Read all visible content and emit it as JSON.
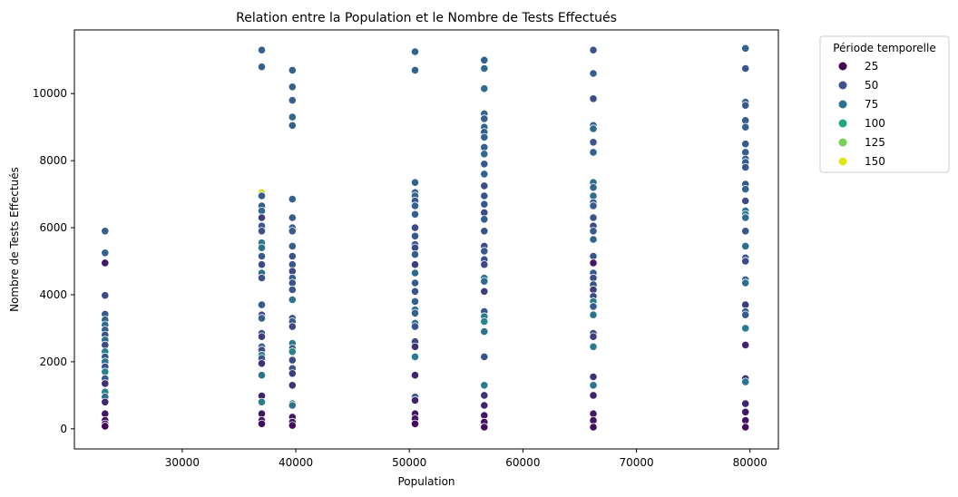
{
  "chart_data": {
    "type": "scatter",
    "title": "Relation entre la Population et le Nombre de Tests Effectués",
    "xlabel": "Population",
    "ylabel": "Nombre de Tests Effectués",
    "xlim": [
      20500,
      82500
    ],
    "ylim": [
      -600,
      11900
    ],
    "xticks": [
      30000,
      40000,
      50000,
      60000,
      70000,
      80000
    ],
    "yticks": [
      0,
      2000,
      4000,
      6000,
      8000,
      10000
    ],
    "grid": false,
    "legend": {
      "title": "Période temporelle",
      "placement": "outside-top-right",
      "entries": [
        {
          "label": "25",
          "color": "#440154"
        },
        {
          "label": "50",
          "color": "#3b528b"
        },
        {
          "label": "75",
          "color": "#2c728e"
        },
        {
          "label": "100",
          "color": "#21a685"
        },
        {
          "label": "125",
          "color": "#75d054"
        },
        {
          "label": "150",
          "color": "#e3e418"
        }
      ]
    },
    "hue_range": [
      1,
      160
    ],
    "points": [
      {
        "x": 23200,
        "y": 5900,
        "t": 45
      },
      {
        "x": 23200,
        "y": 5250,
        "t": 50
      },
      {
        "x": 23200,
        "y": 4950,
        "t": 10
      },
      {
        "x": 23200,
        "y": 3980,
        "t": 30
      },
      {
        "x": 23200,
        "y": 3420,
        "t": 40
      },
      {
        "x": 23200,
        "y": 3250,
        "t": 50
      },
      {
        "x": 23200,
        "y": 3100,
        "t": 60
      },
      {
        "x": 23200,
        "y": 2950,
        "t": 45
      },
      {
        "x": 23200,
        "y": 2800,
        "t": 35
      },
      {
        "x": 23200,
        "y": 2650,
        "t": 55
      },
      {
        "x": 23200,
        "y": 2500,
        "t": 30
      },
      {
        "x": 23200,
        "y": 2300,
        "t": 70
      },
      {
        "x": 23200,
        "y": 2150,
        "t": 40
      },
      {
        "x": 23200,
        "y": 2000,
        "t": 65
      },
      {
        "x": 23200,
        "y": 1850,
        "t": 35
      },
      {
        "x": 23200,
        "y": 1700,
        "t": 75
      },
      {
        "x": 23200,
        "y": 1500,
        "t": 40
      },
      {
        "x": 23200,
        "y": 1350,
        "t": 20
      },
      {
        "x": 23200,
        "y": 1100,
        "t": 75
      },
      {
        "x": 23200,
        "y": 950,
        "t": 55
      },
      {
        "x": 23200,
        "y": 800,
        "t": 15
      },
      {
        "x": 23200,
        "y": 450,
        "t": 10
      },
      {
        "x": 23200,
        "y": 250,
        "t": 5
      },
      {
        "x": 23200,
        "y": 150,
        "t": 8
      },
      {
        "x": 23200,
        "y": 80,
        "t": 3
      },
      {
        "x": 37000,
        "y": 11300,
        "t": 50
      },
      {
        "x": 37000,
        "y": 10800,
        "t": 50
      },
      {
        "x": 37000,
        "y": 7050,
        "t": 155
      },
      {
        "x": 37000,
        "y": 6950,
        "t": 40
      },
      {
        "x": 37000,
        "y": 6650,
        "t": 45
      },
      {
        "x": 37000,
        "y": 6500,
        "t": 60
      },
      {
        "x": 37000,
        "y": 6300,
        "t": 25
      },
      {
        "x": 37000,
        "y": 6050,
        "t": 40
      },
      {
        "x": 37000,
        "y": 5900,
        "t": 35
      },
      {
        "x": 37000,
        "y": 5550,
        "t": 70
      },
      {
        "x": 37000,
        "y": 5400,
        "t": 65
      },
      {
        "x": 37000,
        "y": 5150,
        "t": 40
      },
      {
        "x": 37000,
        "y": 4900,
        "t": 30
      },
      {
        "x": 37000,
        "y": 4650,
        "t": 65
      },
      {
        "x": 37000,
        "y": 4500,
        "t": 35
      },
      {
        "x": 37000,
        "y": 3700,
        "t": 40
      },
      {
        "x": 37000,
        "y": 3400,
        "t": 30
      },
      {
        "x": 37000,
        "y": 3300,
        "t": 45
      },
      {
        "x": 37000,
        "y": 2850,
        "t": 35
      },
      {
        "x": 37000,
        "y": 2750,
        "t": 25
      },
      {
        "x": 37000,
        "y": 2450,
        "t": 40
      },
      {
        "x": 37000,
        "y": 2350,
        "t": 30
      },
      {
        "x": 37000,
        "y": 2200,
        "t": 70
      },
      {
        "x": 37000,
        "y": 2100,
        "t": 35
      },
      {
        "x": 37000,
        "y": 1950,
        "t": 20
      },
      {
        "x": 37000,
        "y": 1600,
        "t": 65
      },
      {
        "x": 37000,
        "y": 980,
        "t": 15
      },
      {
        "x": 37000,
        "y": 800,
        "t": 70
      },
      {
        "x": 37000,
        "y": 450,
        "t": 10
      },
      {
        "x": 37000,
        "y": 250,
        "t": 8
      },
      {
        "x": 37000,
        "y": 150,
        "t": 5
      },
      {
        "x": 39700,
        "y": 10700,
        "t": 50
      },
      {
        "x": 39700,
        "y": 10200,
        "t": 50
      },
      {
        "x": 39700,
        "y": 9800,
        "t": 50
      },
      {
        "x": 39700,
        "y": 9300,
        "t": 55
      },
      {
        "x": 39700,
        "y": 9050,
        "t": 50
      },
      {
        "x": 39700,
        "y": 6850,
        "t": 50
      },
      {
        "x": 39700,
        "y": 6300,
        "t": 45
      },
      {
        "x": 39700,
        "y": 6000,
        "t": 50
      },
      {
        "x": 39700,
        "y": 5900,
        "t": 40
      },
      {
        "x": 39700,
        "y": 5450,
        "t": 45
      },
      {
        "x": 39700,
        "y": 5150,
        "t": 35
      },
      {
        "x": 39700,
        "y": 4900,
        "t": 40
      },
      {
        "x": 39700,
        "y": 4700,
        "t": 30
      },
      {
        "x": 39700,
        "y": 4500,
        "t": 45
      },
      {
        "x": 39700,
        "y": 4350,
        "t": 35
      },
      {
        "x": 39700,
        "y": 4150,
        "t": 40
      },
      {
        "x": 39700,
        "y": 3850,
        "t": 65
      },
      {
        "x": 39700,
        "y": 3300,
        "t": 35
      },
      {
        "x": 39700,
        "y": 3200,
        "t": 45
      },
      {
        "x": 39700,
        "y": 3050,
        "t": 30
      },
      {
        "x": 39700,
        "y": 2550,
        "t": 70
      },
      {
        "x": 39700,
        "y": 2400,
        "t": 40
      },
      {
        "x": 39700,
        "y": 2300,
        "t": 75
      },
      {
        "x": 39700,
        "y": 2050,
        "t": 30
      },
      {
        "x": 39700,
        "y": 1800,
        "t": 35
      },
      {
        "x": 39700,
        "y": 1650,
        "t": 25
      },
      {
        "x": 39700,
        "y": 1300,
        "t": 20
      },
      {
        "x": 39700,
        "y": 750,
        "t": 70
      },
      {
        "x": 39700,
        "y": 700,
        "t": 65
      },
      {
        "x": 39700,
        "y": 350,
        "t": 10
      },
      {
        "x": 39700,
        "y": 200,
        "t": 8
      },
      {
        "x": 39700,
        "y": 100,
        "t": 5
      },
      {
        "x": 50500,
        "y": 11250,
        "t": 50
      },
      {
        "x": 50500,
        "y": 10700,
        "t": 50
      },
      {
        "x": 50500,
        "y": 7350,
        "t": 50
      },
      {
        "x": 50500,
        "y": 7050,
        "t": 45
      },
      {
        "x": 50500,
        "y": 6950,
        "t": 50
      },
      {
        "x": 50500,
        "y": 6800,
        "t": 40
      },
      {
        "x": 50500,
        "y": 6650,
        "t": 50
      },
      {
        "x": 50500,
        "y": 6400,
        "t": 45
      },
      {
        "x": 50500,
        "y": 6000,
        "t": 30
      },
      {
        "x": 50500,
        "y": 5750,
        "t": 40
      },
      {
        "x": 50500,
        "y": 5500,
        "t": 35
      },
      {
        "x": 50500,
        "y": 5400,
        "t": 30
      },
      {
        "x": 50500,
        "y": 5200,
        "t": 45
      },
      {
        "x": 50500,
        "y": 4900,
        "t": 25
      },
      {
        "x": 50500,
        "y": 4650,
        "t": 55
      },
      {
        "x": 50500,
        "y": 4350,
        "t": 40
      },
      {
        "x": 50500,
        "y": 4100,
        "t": 35
      },
      {
        "x": 50500,
        "y": 3800,
        "t": 50
      },
      {
        "x": 50500,
        "y": 3550,
        "t": 65
      },
      {
        "x": 50500,
        "y": 3450,
        "t": 45
      },
      {
        "x": 50500,
        "y": 3150,
        "t": 60
      },
      {
        "x": 50500,
        "y": 3050,
        "t": 35
      },
      {
        "x": 50500,
        "y": 2600,
        "t": 30
      },
      {
        "x": 50500,
        "y": 2450,
        "t": 20
      },
      {
        "x": 50500,
        "y": 2150,
        "t": 70
      },
      {
        "x": 50500,
        "y": 1600,
        "t": 15
      },
      {
        "x": 50500,
        "y": 950,
        "t": 40
      },
      {
        "x": 50500,
        "y": 850,
        "t": 15
      },
      {
        "x": 50500,
        "y": 450,
        "t": 10
      },
      {
        "x": 50500,
        "y": 300,
        "t": 8
      },
      {
        "x": 50500,
        "y": 150,
        "t": 5
      },
      {
        "x": 56600,
        "y": 11000,
        "t": 50
      },
      {
        "x": 56600,
        "y": 10750,
        "t": 55
      },
      {
        "x": 56600,
        "y": 10150,
        "t": 60
      },
      {
        "x": 56600,
        "y": 9400,
        "t": 50
      },
      {
        "x": 56600,
        "y": 9250,
        "t": 45
      },
      {
        "x": 56600,
        "y": 9000,
        "t": 50
      },
      {
        "x": 56600,
        "y": 8850,
        "t": 45
      },
      {
        "x": 56600,
        "y": 8700,
        "t": 50
      },
      {
        "x": 56600,
        "y": 8400,
        "t": 45
      },
      {
        "x": 56600,
        "y": 8200,
        "t": 55
      },
      {
        "x": 56600,
        "y": 7900,
        "t": 40
      },
      {
        "x": 56600,
        "y": 7600,
        "t": 50
      },
      {
        "x": 56600,
        "y": 7250,
        "t": 30
      },
      {
        "x": 56600,
        "y": 6950,
        "t": 35
      },
      {
        "x": 56600,
        "y": 6700,
        "t": 40
      },
      {
        "x": 56600,
        "y": 6450,
        "t": 30
      },
      {
        "x": 56600,
        "y": 6250,
        "t": 45
      },
      {
        "x": 56600,
        "y": 5900,
        "t": 35
      },
      {
        "x": 56600,
        "y": 5450,
        "t": 30
      },
      {
        "x": 56600,
        "y": 5300,
        "t": 40
      },
      {
        "x": 56600,
        "y": 5050,
        "t": 35
      },
      {
        "x": 56600,
        "y": 4900,
        "t": 30
      },
      {
        "x": 56600,
        "y": 4500,
        "t": 65
      },
      {
        "x": 56600,
        "y": 4400,
        "t": 60
      },
      {
        "x": 56600,
        "y": 4100,
        "t": 25
      },
      {
        "x": 56600,
        "y": 3500,
        "t": 35
      },
      {
        "x": 56600,
        "y": 3350,
        "t": 70
      },
      {
        "x": 56600,
        "y": 3200,
        "t": 75
      },
      {
        "x": 56600,
        "y": 2900,
        "t": 65
      },
      {
        "x": 56600,
        "y": 2150,
        "t": 35
      },
      {
        "x": 56600,
        "y": 1300,
        "t": 70
      },
      {
        "x": 56600,
        "y": 1000,
        "t": 20
      },
      {
        "x": 56600,
        "y": 700,
        "t": 15
      },
      {
        "x": 56600,
        "y": 400,
        "t": 10
      },
      {
        "x": 56600,
        "y": 200,
        "t": 8
      },
      {
        "x": 56600,
        "y": 50,
        "t": 5
      },
      {
        "x": 66200,
        "y": 11300,
        "t": 35
      },
      {
        "x": 66200,
        "y": 10600,
        "t": 45
      },
      {
        "x": 66200,
        "y": 9850,
        "t": 30
      },
      {
        "x": 66200,
        "y": 9050,
        "t": 50
      },
      {
        "x": 66200,
        "y": 8950,
        "t": 55
      },
      {
        "x": 66200,
        "y": 8550,
        "t": 35
      },
      {
        "x": 66200,
        "y": 8250,
        "t": 50
      },
      {
        "x": 66200,
        "y": 7350,
        "t": 60
      },
      {
        "x": 66200,
        "y": 7200,
        "t": 55
      },
      {
        "x": 66200,
        "y": 6950,
        "t": 60
      },
      {
        "x": 66200,
        "y": 6750,
        "t": 45
      },
      {
        "x": 66200,
        "y": 6650,
        "t": 40
      },
      {
        "x": 66200,
        "y": 6300,
        "t": 35
      },
      {
        "x": 66200,
        "y": 6050,
        "t": 30
      },
      {
        "x": 66200,
        "y": 5900,
        "t": 40
      },
      {
        "x": 66200,
        "y": 5650,
        "t": 50
      },
      {
        "x": 66200,
        "y": 5150,
        "t": 35
      },
      {
        "x": 66200,
        "y": 4950,
        "t": 10
      },
      {
        "x": 66200,
        "y": 4650,
        "t": 40
      },
      {
        "x": 66200,
        "y": 4500,
        "t": 30
      },
      {
        "x": 66200,
        "y": 4300,
        "t": 35
      },
      {
        "x": 66200,
        "y": 4150,
        "t": 25
      },
      {
        "x": 66200,
        "y": 3950,
        "t": 30
      },
      {
        "x": 66200,
        "y": 3800,
        "t": 70
      },
      {
        "x": 66200,
        "y": 3650,
        "t": 45
      },
      {
        "x": 66200,
        "y": 3400,
        "t": 65
      },
      {
        "x": 66200,
        "y": 2850,
        "t": 30
      },
      {
        "x": 66200,
        "y": 2750,
        "t": 25
      },
      {
        "x": 66200,
        "y": 2450,
        "t": 70
      },
      {
        "x": 66200,
        "y": 1550,
        "t": 20
      },
      {
        "x": 66200,
        "y": 1300,
        "t": 65
      },
      {
        "x": 66200,
        "y": 1000,
        "t": 15
      },
      {
        "x": 66200,
        "y": 450,
        "t": 10
      },
      {
        "x": 66200,
        "y": 250,
        "t": 8
      },
      {
        "x": 66200,
        "y": 50,
        "t": 5
      },
      {
        "x": 79600,
        "y": 11350,
        "t": 50
      },
      {
        "x": 79600,
        "y": 10750,
        "t": 35
      },
      {
        "x": 79600,
        "y": 9750,
        "t": 55
      },
      {
        "x": 79600,
        "y": 9650,
        "t": 40
      },
      {
        "x": 79600,
        "y": 9200,
        "t": 45
      },
      {
        "x": 79600,
        "y": 9000,
        "t": 50
      },
      {
        "x": 79600,
        "y": 8500,
        "t": 40
      },
      {
        "x": 79600,
        "y": 8250,
        "t": 45
      },
      {
        "x": 79600,
        "y": 8050,
        "t": 50
      },
      {
        "x": 79600,
        "y": 7950,
        "t": 45
      },
      {
        "x": 79600,
        "y": 7800,
        "t": 35
      },
      {
        "x": 79600,
        "y": 7300,
        "t": 40
      },
      {
        "x": 79600,
        "y": 7150,
        "t": 50
      },
      {
        "x": 79600,
        "y": 6800,
        "t": 30
      },
      {
        "x": 79600,
        "y": 6500,
        "t": 60
      },
      {
        "x": 79600,
        "y": 6400,
        "t": 70
      },
      {
        "x": 79600,
        "y": 6300,
        "t": 55
      },
      {
        "x": 79600,
        "y": 5900,
        "t": 35
      },
      {
        "x": 79600,
        "y": 5450,
        "t": 60
      },
      {
        "x": 79600,
        "y": 5100,
        "t": 35
      },
      {
        "x": 79600,
        "y": 5000,
        "t": 30
      },
      {
        "x": 79600,
        "y": 4450,
        "t": 50
      },
      {
        "x": 79600,
        "y": 4350,
        "t": 60
      },
      {
        "x": 79600,
        "y": 3700,
        "t": 25
      },
      {
        "x": 79600,
        "y": 3500,
        "t": 45
      },
      {
        "x": 79600,
        "y": 3400,
        "t": 40
      },
      {
        "x": 79600,
        "y": 3000,
        "t": 70
      },
      {
        "x": 79600,
        "y": 2500,
        "t": 15
      },
      {
        "x": 79600,
        "y": 1500,
        "t": 20
      },
      {
        "x": 79600,
        "y": 1400,
        "t": 65
      },
      {
        "x": 79600,
        "y": 750,
        "t": 15
      },
      {
        "x": 79600,
        "y": 500,
        "t": 10
      },
      {
        "x": 79600,
        "y": 250,
        "t": 8
      },
      {
        "x": 79600,
        "y": 50,
        "t": 5
      }
    ]
  }
}
